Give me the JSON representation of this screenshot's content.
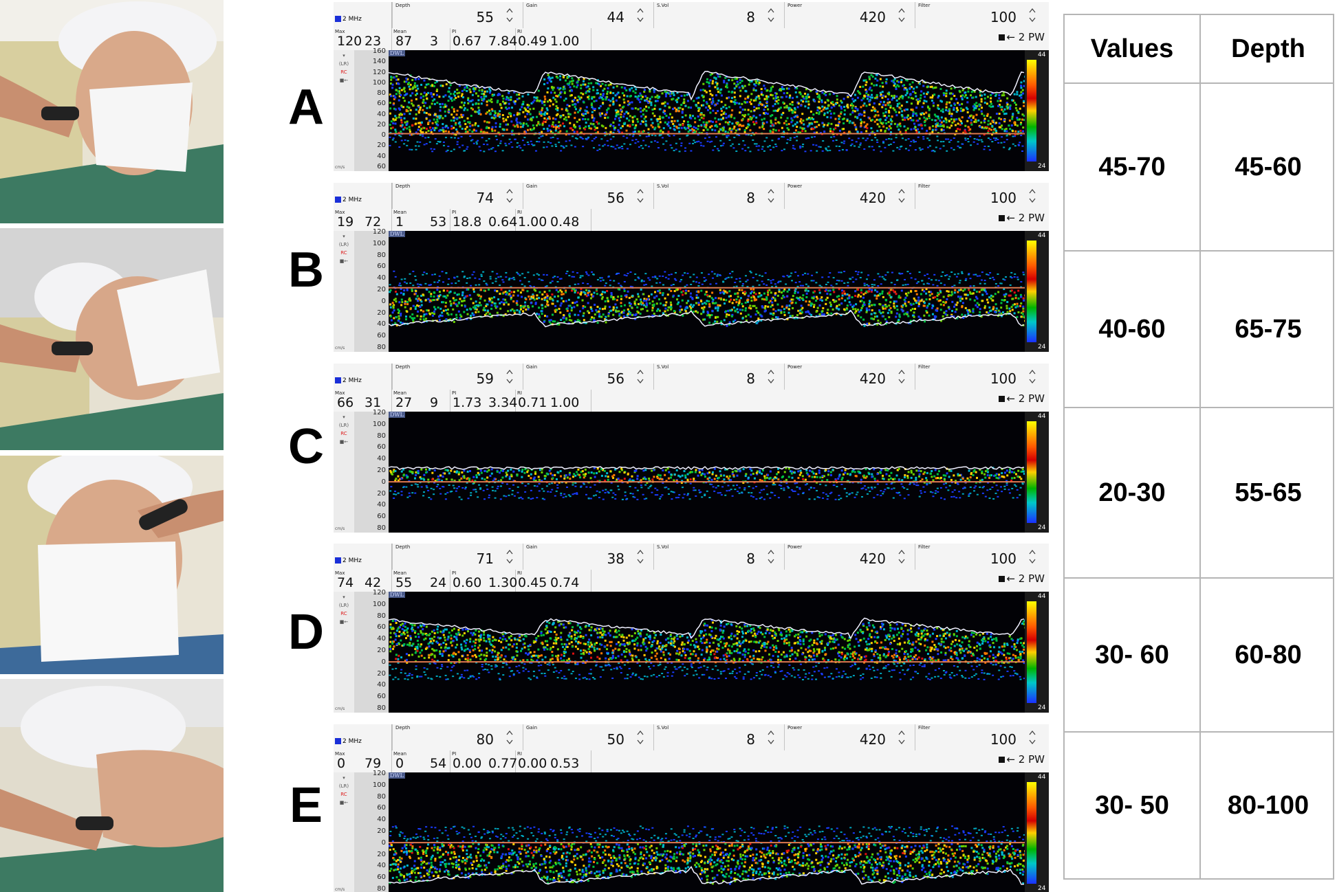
{
  "panels": [
    {
      "letter": "A",
      "freq": "2 MHz",
      "depth": "55",
      "gain": "44",
      "svol": "8",
      "power": "420",
      "filter": "100",
      "max": [
        "120",
        "23"
      ],
      "mean": [
        "87",
        "3"
      ],
      "pi": [
        "0.67",
        "7.84"
      ],
      "ri": [
        "0.49",
        "1.00"
      ],
      "mode": "2 PW",
      "ticks": [
        "160",
        "140",
        "120",
        "100",
        "80",
        "60",
        "40",
        "20",
        "0",
        "20",
        "40",
        "60"
      ],
      "baseline": 0.69,
      "kind": "up"
    },
    {
      "letter": "B",
      "freq": "2 MHz",
      "depth": "74",
      "gain": "56",
      "svol": "8",
      "power": "420",
      "filter": "100",
      "max": [
        "19",
        "72"
      ],
      "mean": [
        "1",
        "53"
      ],
      "pi": [
        "18.8",
        "0.64"
      ],
      "ri": [
        "1.00",
        "0.48"
      ],
      "mode": "2 PW",
      "ticks": [
        "120",
        "100",
        "80",
        "60",
        "40",
        "20",
        "0",
        "20",
        "40",
        "60",
        "80"
      ],
      "baseline": 0.47,
      "kind": "down"
    },
    {
      "letter": "C",
      "freq": "2 MHz",
      "depth": "59",
      "gain": "56",
      "svol": "8",
      "power": "420",
      "filter": "100",
      "max": [
        "66",
        "31"
      ],
      "mean": [
        "27",
        "9"
      ],
      "pi": [
        "1.73",
        "3.34"
      ],
      "ri": [
        "0.71",
        "1.00"
      ],
      "mode": "2 PW",
      "ticks": [
        "120",
        "100",
        "80",
        "60",
        "40",
        "20",
        "0",
        "20",
        "40",
        "60",
        "80"
      ],
      "baseline": 0.58,
      "kind": "flat"
    },
    {
      "letter": "D",
      "freq": "2 MHz",
      "depth": "71",
      "gain": "38",
      "svol": "8",
      "power": "420",
      "filter": "100",
      "max": [
        "74",
        "42"
      ],
      "mean": [
        "55",
        "24"
      ],
      "pi": [
        "0.60",
        "1.30"
      ],
      "ri": [
        "0.45",
        "0.74"
      ],
      "mode": "2 PW",
      "ticks": [
        "120",
        "100",
        "80",
        "60",
        "40",
        "20",
        "0",
        "20",
        "40",
        "60",
        "80"
      ],
      "baseline": 0.58,
      "kind": "up2"
    },
    {
      "letter": "E",
      "freq": "2 MHz",
      "depth": "80",
      "gain": "50",
      "svol": "8",
      "power": "420",
      "filter": "100",
      "max": [
        "0",
        "79"
      ],
      "mean": [
        "0",
        "54"
      ],
      "pi": [
        "0.00",
        "0.77"
      ],
      "ri": [
        "0.00",
        "0.53"
      ],
      "mode": "2 PW",
      "ticks": [
        "120",
        "100",
        "80",
        "60",
        "40",
        "20",
        "0",
        "20",
        "40",
        "60",
        "80"
      ],
      "baseline": 0.58,
      "kind": "down2"
    }
  ],
  "labels": {
    "depth": "Depth",
    "gain": "Gain",
    "svol": "S.Vol",
    "power": "Power",
    "filter": "Filter",
    "max": "Max",
    "mean": "Mean",
    "pi": "PI",
    "ri": "RI",
    "units": "cm/s",
    "logo": "DWL",
    "cb_top": "44",
    "cb_bot": "24",
    "lr": "(LR)",
    "rc": "RC"
  },
  "table": {
    "headers": [
      "Values",
      "Depth"
    ],
    "rows": [
      [
        "45-70",
        "45-60"
      ],
      [
        "40-60",
        "65-75"
      ],
      [
        "20-30",
        "55-65"
      ],
      [
        "30- 60",
        "60-80"
      ],
      [
        "30- 50",
        "80-100"
      ]
    ]
  },
  "colors": {
    "spectrum_bg": "#020206",
    "envelope": "#f0f0ff",
    "baseline": "#e07a50",
    "table_border": "#b5b5b5"
  }
}
